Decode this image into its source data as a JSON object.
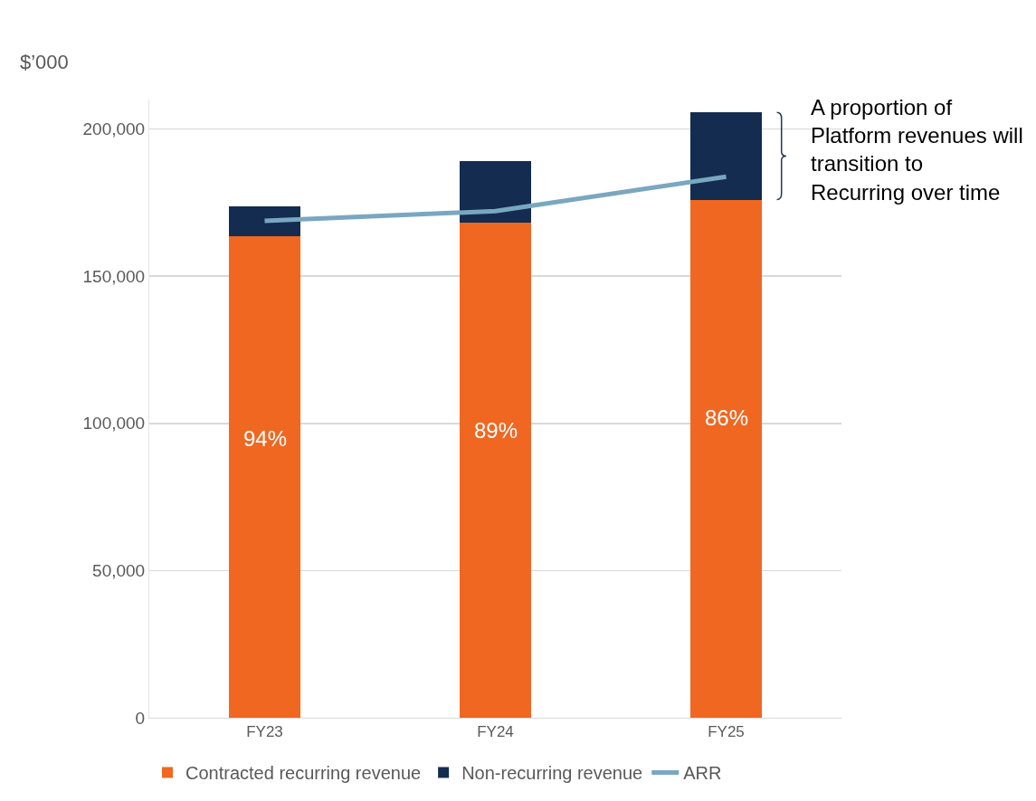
{
  "chart_data": {
    "type": "bar",
    "stacked": true,
    "ylabel": "$’000",
    "categories": [
      "FY23",
      "FY24",
      "FY25"
    ],
    "series": [
      {
        "name": "Contracted recurring revenue",
        "color": "#f06722",
        "values": [
          163500,
          168200,
          176000
        ]
      },
      {
        "name": "Non-recurring revenue",
        "color": "#132c50",
        "values": [
          10300,
          20900,
          29600
        ]
      },
      {
        "name": "ARR",
        "type": "line",
        "color": "#7aa7c0",
        "values": [
          168800,
          172100,
          183800
        ]
      }
    ],
    "ylim": [
      0,
      210000
    ],
    "yticks": [
      {
        "value": 0,
        "label": "0"
      },
      {
        "value": 50000,
        "label": "50,000"
      },
      {
        "value": 100000,
        "label": "100,000"
      },
      {
        "value": 150000,
        "label": "150,000"
      },
      {
        "value": 200000,
        "label": "200,000"
      }
    ],
    "grid": "y",
    "legend": "bottom",
    "marker": "none",
    "annotations": [
      "A proportion of Platform revenues will transition to Recurring over time",
      "94%",
      "89%",
      "86%"
    ]
  }
}
